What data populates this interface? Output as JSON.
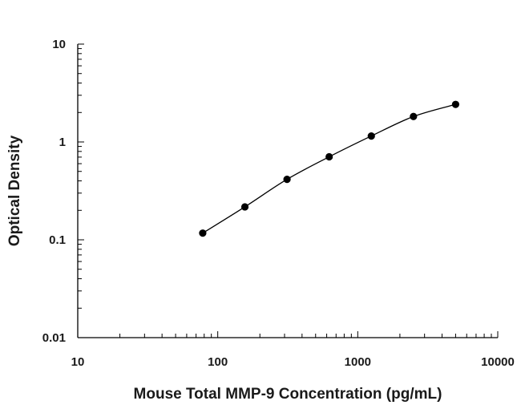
{
  "chart_data": {
    "type": "scatter",
    "title": "",
    "xlabel": "Mouse Total MMP-9 Concentration (pg/mL)",
    "ylabel": "Optical Density",
    "xscale": "log",
    "yscale": "log",
    "xlim": [
      10,
      10000
    ],
    "ylim": [
      0.01,
      10
    ],
    "x_ticks": [
      "10",
      "100",
      "1000",
      "10000"
    ],
    "y_ticks": [
      "0.01",
      "0.1",
      "1",
      "10"
    ],
    "grid": false,
    "legend": "none",
    "series": [
      {
        "x": [
          78.1,
          156.25,
          312.5,
          625,
          1250,
          2500,
          5000
        ],
        "y": [
          0.117,
          0.217,
          0.415,
          0.705,
          1.15,
          1.82,
          2.42
        ],
        "marker": "circle",
        "fit_curve": true
      }
    ],
    "colors": {
      "marker": "#000000",
      "line": "#000000",
      "axis": "#000000"
    }
  }
}
